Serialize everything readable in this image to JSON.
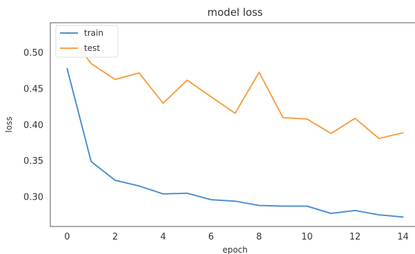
{
  "chart_data": {
    "type": "line",
    "title": "model loss",
    "xlabel": "epoch",
    "ylabel": "loss",
    "x": [
      0,
      1,
      2,
      3,
      4,
      5,
      6,
      7,
      8,
      9,
      10,
      11,
      12,
      13,
      14
    ],
    "xticks": [
      0,
      2,
      4,
      6,
      8,
      10,
      12,
      14
    ],
    "yticks": [
      0.3,
      0.35,
      0.4,
      0.45,
      0.5
    ],
    "xlim": [
      -0.7,
      14.7
    ],
    "ylim": [
      0.2588,
      0.5418
    ],
    "grid": false,
    "legend_position": "top-left",
    "series": [
      {
        "name": "train",
        "color": "#4c8fce",
        "values": [
          0.478,
          0.349,
          0.323,
          0.315,
          0.304,
          0.305,
          0.296,
          0.294,
          0.288,
          0.287,
          0.287,
          0.277,
          0.281,
          0.275,
          0.272
        ]
      },
      {
        "name": "test",
        "color": "#f5a045",
        "values": [
          0.53,
          0.485,
          0.463,
          0.472,
          0.43,
          0.462,
          0.439,
          0.416,
          0.473,
          0.41,
          0.408,
          0.388,
          0.409,
          0.381,
          0.389
        ]
      }
    ]
  }
}
